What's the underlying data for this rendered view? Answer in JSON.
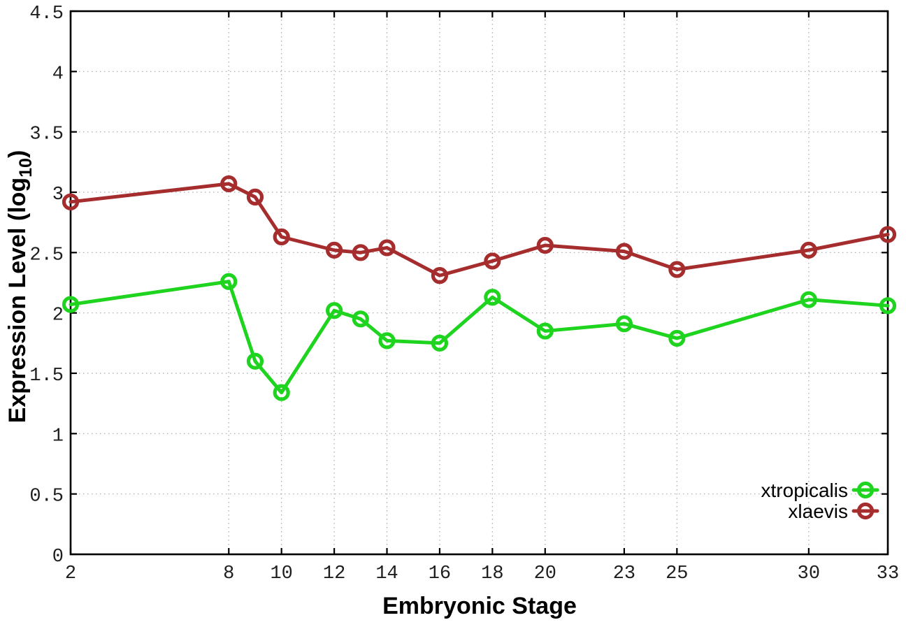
{
  "figure": {
    "background": "#ffffff",
    "xlabel": "Embryonic Stage",
    "ylabel_prefix": "Expression Level (log",
    "ylabel_sub": "10",
    "ylabel_suffix": ")"
  },
  "chart_data": {
    "type": "line",
    "title": "",
    "xlabel": "Embryonic Stage",
    "ylabel": "Expression Level (log10)",
    "xlim": [
      2,
      33
    ],
    "ylim": [
      0,
      4.5
    ],
    "xticks": [
      2,
      8,
      10,
      12,
      14,
      16,
      18,
      20,
      23,
      25,
      30,
      33
    ],
    "yticks": [
      0,
      0.5,
      1,
      1.5,
      2,
      2.5,
      3,
      3.5,
      4,
      4.5
    ],
    "grid": true,
    "legend_position": "inside-bottom-right",
    "x": [
      2,
      8,
      9,
      10,
      12,
      13,
      14,
      16,
      18,
      20,
      23,
      25,
      30,
      33
    ],
    "series": [
      {
        "name": "xtropicalis",
        "color": "#1fd41f",
        "values": [
          2.07,
          2.26,
          1.6,
          1.34,
          2.02,
          1.95,
          1.77,
          1.75,
          2.13,
          1.85,
          1.91,
          1.79,
          2.11,
          2.06
        ]
      },
      {
        "name": "xlaevis",
        "color": "#a52d2d",
        "values": [
          2.92,
          3.07,
          2.96,
          2.63,
          2.52,
          2.5,
          2.54,
          2.31,
          2.43,
          2.56,
          2.51,
          2.36,
          2.52,
          2.65
        ]
      }
    ],
    "styles": {
      "grid_color": "#a8a8a8",
      "border_color": "#000000",
      "tick_label_color": "#1e1e1e",
      "marker": "open-circle"
    }
  }
}
